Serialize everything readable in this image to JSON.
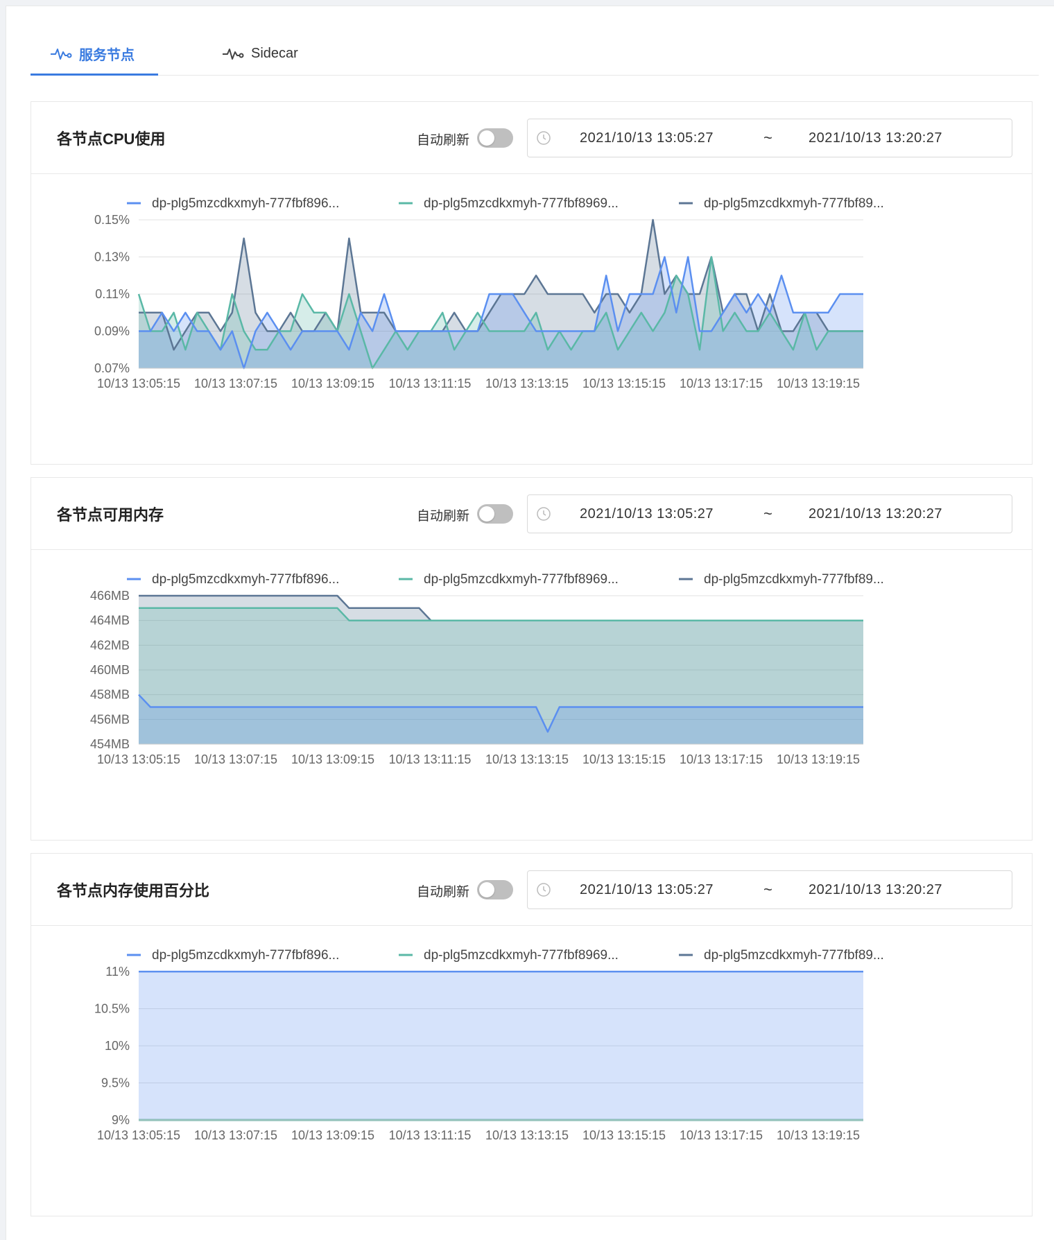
{
  "tabs": [
    {
      "label": "服务节点",
      "icon": "pulse-icon",
      "active": true
    },
    {
      "label": "Sidecar",
      "icon": "pulse-icon",
      "active": false
    }
  ],
  "colors": {
    "accent": "#3a7be0",
    "series": [
      "#5b8ff0",
      "#5ab8a6",
      "#5c7694"
    ]
  },
  "legend_labels": [
    "dp-plg5mzcdkxmyh-777fbf896...",
    "dp-plg5mzcdkxmyh-777fbf8969...",
    "dp-plg5mzcdkxmyh-777fbf89..."
  ],
  "cards": [
    {
      "title": "各节点CPU使用",
      "auto_refresh_label": "自动刷新",
      "auto_refresh_on": false,
      "range_start": "2021/10/13 13:05:27",
      "range_separator": "~",
      "range_end": "2021/10/13 13:20:27"
    },
    {
      "title": "各节点可用内存",
      "auto_refresh_label": "自动刷新",
      "auto_refresh_on": false,
      "range_start": "2021/10/13 13:05:27",
      "range_separator": "~",
      "range_end": "2021/10/13 13:20:27"
    },
    {
      "title": "各节点内存使用百分比",
      "auto_refresh_label": "自动刷新",
      "auto_refresh_on": false,
      "range_start": "2021/10/13 13:05:27",
      "range_separator": "~",
      "range_end": "2021/10/13 13:20:27"
    }
  ],
  "chart_data": [
    {
      "type": "area",
      "title": "",
      "x_ticks": [
        "10/13 13:05:15",
        "10/13 13:07:15",
        "10/13 13:09:15",
        "10/13 13:11:15",
        "10/13 13:13:15",
        "10/13 13:15:15",
        "10/13 13:17:15",
        "10/13 13:19:15"
      ],
      "y_ticks": [
        "0.07%",
        "0.09%",
        "0.11%",
        "0.13%",
        "0.15%"
      ],
      "ylim": [
        0.07,
        0.15
      ],
      "grid": true,
      "legend": "top",
      "series": [
        {
          "name": "dp-plg5mzcdkxmyh-777fbf896...",
          "values": [
            0.09,
            0.09,
            0.1,
            0.09,
            0.1,
            0.09,
            0.09,
            0.08,
            0.09,
            0.07,
            0.09,
            0.1,
            0.09,
            0.08,
            0.09,
            0.09,
            0.09,
            0.09,
            0.08,
            0.1,
            0.09,
            0.11,
            0.09,
            0.09,
            0.09,
            0.09,
            0.09,
            0.09,
            0.09,
            0.09,
            0.11,
            0.11,
            0.11,
            0.1,
            0.09,
            0.09,
            0.09,
            0.09,
            0.09,
            0.09,
            0.12,
            0.09,
            0.11,
            0.11,
            0.11,
            0.13,
            0.1,
            0.13,
            0.09,
            0.09,
            0.1,
            0.11,
            0.1,
            0.11,
            0.1,
            0.12,
            0.1,
            0.1,
            0.1,
            0.1,
            0.11,
            0.11,
            0.11
          ]
        },
        {
          "name": "dp-plg5mzcdkxmyh-777fbf8969...",
          "values": [
            0.11,
            0.09,
            0.09,
            0.1,
            0.08,
            0.1,
            0.09,
            0.08,
            0.11,
            0.09,
            0.08,
            0.08,
            0.09,
            0.09,
            0.11,
            0.1,
            0.1,
            0.09,
            0.11,
            0.09,
            0.07,
            0.08,
            0.09,
            0.08,
            0.09,
            0.09,
            0.1,
            0.08,
            0.09,
            0.1,
            0.09,
            0.09,
            0.09,
            0.09,
            0.1,
            0.08,
            0.09,
            0.08,
            0.09,
            0.09,
            0.1,
            0.08,
            0.09,
            0.1,
            0.09,
            0.1,
            0.12,
            0.11,
            0.08,
            0.13,
            0.09,
            0.1,
            0.09,
            0.09,
            0.1,
            0.09,
            0.08,
            0.1,
            0.08,
            0.09,
            0.09,
            0.09,
            0.09
          ]
        },
        {
          "name": "dp-plg5mzcdkxmyh-777fbf89...",
          "values": [
            0.1,
            0.1,
            0.1,
            0.08,
            0.09,
            0.1,
            0.1,
            0.09,
            0.1,
            0.14,
            0.1,
            0.09,
            0.09,
            0.1,
            0.09,
            0.09,
            0.1,
            0.09,
            0.14,
            0.1,
            0.1,
            0.1,
            0.09,
            0.09,
            0.09,
            0.09,
            0.09,
            0.1,
            0.09,
            0.09,
            0.1,
            0.11,
            0.11,
            0.11,
            0.12,
            0.11,
            0.11,
            0.11,
            0.11,
            0.1,
            0.11,
            0.11,
            0.1,
            0.11,
            0.15,
            0.11,
            0.12,
            0.11,
            0.11,
            0.13,
            0.1,
            0.11,
            0.11,
            0.09,
            0.11,
            0.09,
            0.09,
            0.1,
            0.1,
            0.09,
            0.09,
            0.09,
            0.09
          ]
        }
      ]
    },
    {
      "type": "area",
      "title": "",
      "x_ticks": [
        "10/13 13:05:15",
        "10/13 13:07:15",
        "10/13 13:09:15",
        "10/13 13:11:15",
        "10/13 13:13:15",
        "10/13 13:15:15",
        "10/13 13:17:15",
        "10/13 13:19:15"
      ],
      "y_ticks": [
        "454MB",
        "456MB",
        "458MB",
        "460MB",
        "462MB",
        "464MB",
        "466MB"
      ],
      "ylim": [
        454,
        466
      ],
      "grid": true,
      "legend": "top",
      "series": [
        {
          "name": "dp-plg5mzcdkxmyh-777fbf896...",
          "values": [
            458,
            457,
            457,
            457,
            457,
            457,
            457,
            457,
            457,
            457,
            457,
            457,
            457,
            457,
            457,
            457,
            457,
            457,
            457,
            457,
            457,
            457,
            457,
            457,
            457,
            457,
            457,
            457,
            457,
            457,
            457,
            457,
            457,
            457,
            457,
            455,
            457,
            457,
            457,
            457,
            457,
            457,
            457,
            457,
            457,
            457,
            457,
            457,
            457,
            457,
            457,
            457,
            457,
            457,
            457,
            457,
            457,
            457,
            457,
            457,
            457,
            457,
            457
          ]
        },
        {
          "name": "dp-plg5mzcdkxmyh-777fbf8969...",
          "values": [
            465,
            465,
            465,
            465,
            465,
            465,
            465,
            465,
            465,
            465,
            465,
            465,
            465,
            465,
            465,
            465,
            465,
            465,
            464,
            464,
            464,
            464,
            464,
            464,
            464,
            464,
            464,
            464,
            464,
            464,
            464,
            464,
            464,
            464,
            464,
            464,
            464,
            464,
            464,
            464,
            464,
            464,
            464,
            464,
            464,
            464,
            464,
            464,
            464,
            464,
            464,
            464,
            464,
            464,
            464,
            464,
            464,
            464,
            464,
            464,
            464,
            464,
            464
          ]
        },
        {
          "name": "dp-plg5mzcdkxmyh-777fbf89...",
          "values": [
            466,
            466,
            466,
            466,
            466,
            466,
            466,
            466,
            466,
            466,
            466,
            466,
            466,
            466,
            466,
            466,
            466,
            466,
            465,
            465,
            465,
            465,
            465,
            465,
            465,
            464,
            464,
            464,
            464,
            464,
            464,
            464,
            464,
            464,
            464,
            464,
            464,
            464,
            464,
            464,
            464,
            464,
            464,
            464,
            464,
            464,
            464,
            464,
            464,
            464,
            464,
            464,
            464,
            464,
            464,
            464,
            464,
            464,
            464,
            464,
            464,
            464,
            464
          ]
        }
      ]
    },
    {
      "type": "area",
      "title": "",
      "x_ticks": [
        "10/13 13:05:15",
        "10/13 13:07:15",
        "10/13 13:09:15",
        "10/13 13:11:15",
        "10/13 13:13:15",
        "10/13 13:15:15",
        "10/13 13:17:15",
        "10/13 13:19:15"
      ],
      "y_ticks": [
        "9%",
        "9.5%",
        "10%",
        "10.5%",
        "11%"
      ],
      "ylim": [
        9,
        11
      ],
      "grid": true,
      "legend": "top",
      "series": [
        {
          "name": "dp-plg5mzcdkxmyh-777fbf896...",
          "values": [
            11,
            11,
            11,
            11,
            11,
            11,
            11,
            11,
            11,
            11,
            11,
            11,
            11,
            11,
            11,
            11,
            11,
            11,
            11,
            11,
            11,
            11,
            11,
            11,
            11,
            11,
            11,
            11,
            11,
            11,
            11,
            11,
            11,
            11,
            11,
            11,
            11,
            11,
            11,
            11,
            11,
            11,
            11,
            11,
            11,
            11,
            11,
            11,
            11,
            11,
            11,
            11,
            11,
            11,
            11,
            11,
            11,
            11,
            11,
            11,
            11,
            11,
            11
          ]
        },
        {
          "name": "dp-plg5mzcdkxmyh-777fbf8969...",
          "values": [
            9,
            9,
            9,
            9,
            9,
            9,
            9,
            9,
            9,
            9,
            9,
            9,
            9,
            9,
            9,
            9,
            9,
            9,
            9,
            9,
            9,
            9,
            9,
            9,
            9,
            9,
            9,
            9,
            9,
            9,
            9,
            9,
            9,
            9,
            9,
            9,
            9,
            9,
            9,
            9,
            9,
            9,
            9,
            9,
            9,
            9,
            9,
            9,
            9,
            9,
            9,
            9,
            9,
            9,
            9,
            9,
            9,
            9,
            9,
            9,
            9,
            9,
            9
          ]
        },
        {
          "name": "dp-plg5mzcdkxmyh-777fbf89...",
          "values": [
            9,
            9,
            9,
            9,
            9,
            9,
            9,
            9,
            9,
            9,
            9,
            9,
            9,
            9,
            9,
            9,
            9,
            9,
            9,
            9,
            9,
            9,
            9,
            9,
            9,
            9,
            9,
            9,
            9,
            9,
            9,
            9,
            9,
            9,
            9,
            9,
            9,
            9,
            9,
            9,
            9,
            9,
            9,
            9,
            9,
            9,
            9,
            9,
            9,
            9,
            9,
            9,
            9,
            9,
            9,
            9,
            9,
            9,
            9,
            9,
            9,
            9,
            9
          ]
        }
      ]
    }
  ]
}
